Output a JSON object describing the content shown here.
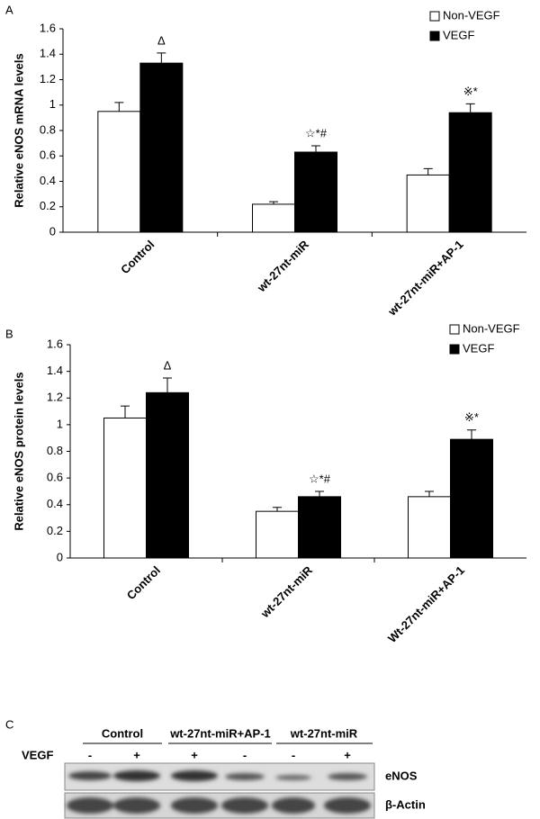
{
  "chart_data": [
    {
      "type": "bar",
      "panel_label": "A",
      "y_label": "Relative eNOS mRNA levels",
      "categories": [
        "Control",
        "wt-27nt-miR",
        "wt-27nt-miR+AP-1"
      ],
      "series": [
        {
          "name": "Non-VEGF",
          "color": "#ffffff",
          "values": [
            0.95,
            0.22,
            0.45
          ],
          "errors": [
            0.07,
            0.02,
            0.05
          ]
        },
        {
          "name": "VEGF",
          "color": "#000000",
          "values": [
            1.33,
            0.63,
            0.94
          ],
          "errors": [
            0.08,
            0.05,
            0.07
          ],
          "annotations": [
            "Δ",
            "☆*#",
            "※*"
          ]
        }
      ],
      "ylim": [
        0,
        1.6
      ],
      "yticks": [
        0,
        0.2,
        0.4,
        0.6,
        0.8,
        1,
        1.2,
        1.4,
        1.6
      ],
      "legend": "upper right"
    },
    {
      "type": "bar",
      "panel_label": "B",
      "y_label": "Relative eNOS protein levels",
      "categories": [
        "Control",
        "wt-27nt-miR",
        "Wt-27nt-miR+AP-1"
      ],
      "series": [
        {
          "name": "Non-VEGF",
          "color": "#ffffff",
          "values": [
            1.05,
            0.35,
            0.46
          ],
          "errors": [
            0.09,
            0.03,
            0.04
          ]
        },
        {
          "name": "VEGF",
          "color": "#000000",
          "values": [
            1.24,
            0.46,
            0.89
          ],
          "errors": [
            0.11,
            0.04,
            0.07
          ],
          "annotations": [
            "Δ",
            "☆*#",
            "※*"
          ]
        }
      ],
      "ylim": [
        0,
        1.6
      ],
      "yticks": [
        0,
        0.2,
        0.4,
        0.6,
        0.8,
        1,
        1.2,
        1.4,
        1.6
      ],
      "legend": "upper right"
    }
  ],
  "blot": {
    "panel_label": "C",
    "groups": [
      "Control",
      "wt-27nt-miR+AP-1",
      "wt-27nt-miR"
    ],
    "row_label": "VEGF",
    "signs": [
      "-",
      "+",
      "+",
      "-",
      "-",
      "+"
    ],
    "bands": [
      "eNOS",
      "β-Actin"
    ]
  }
}
